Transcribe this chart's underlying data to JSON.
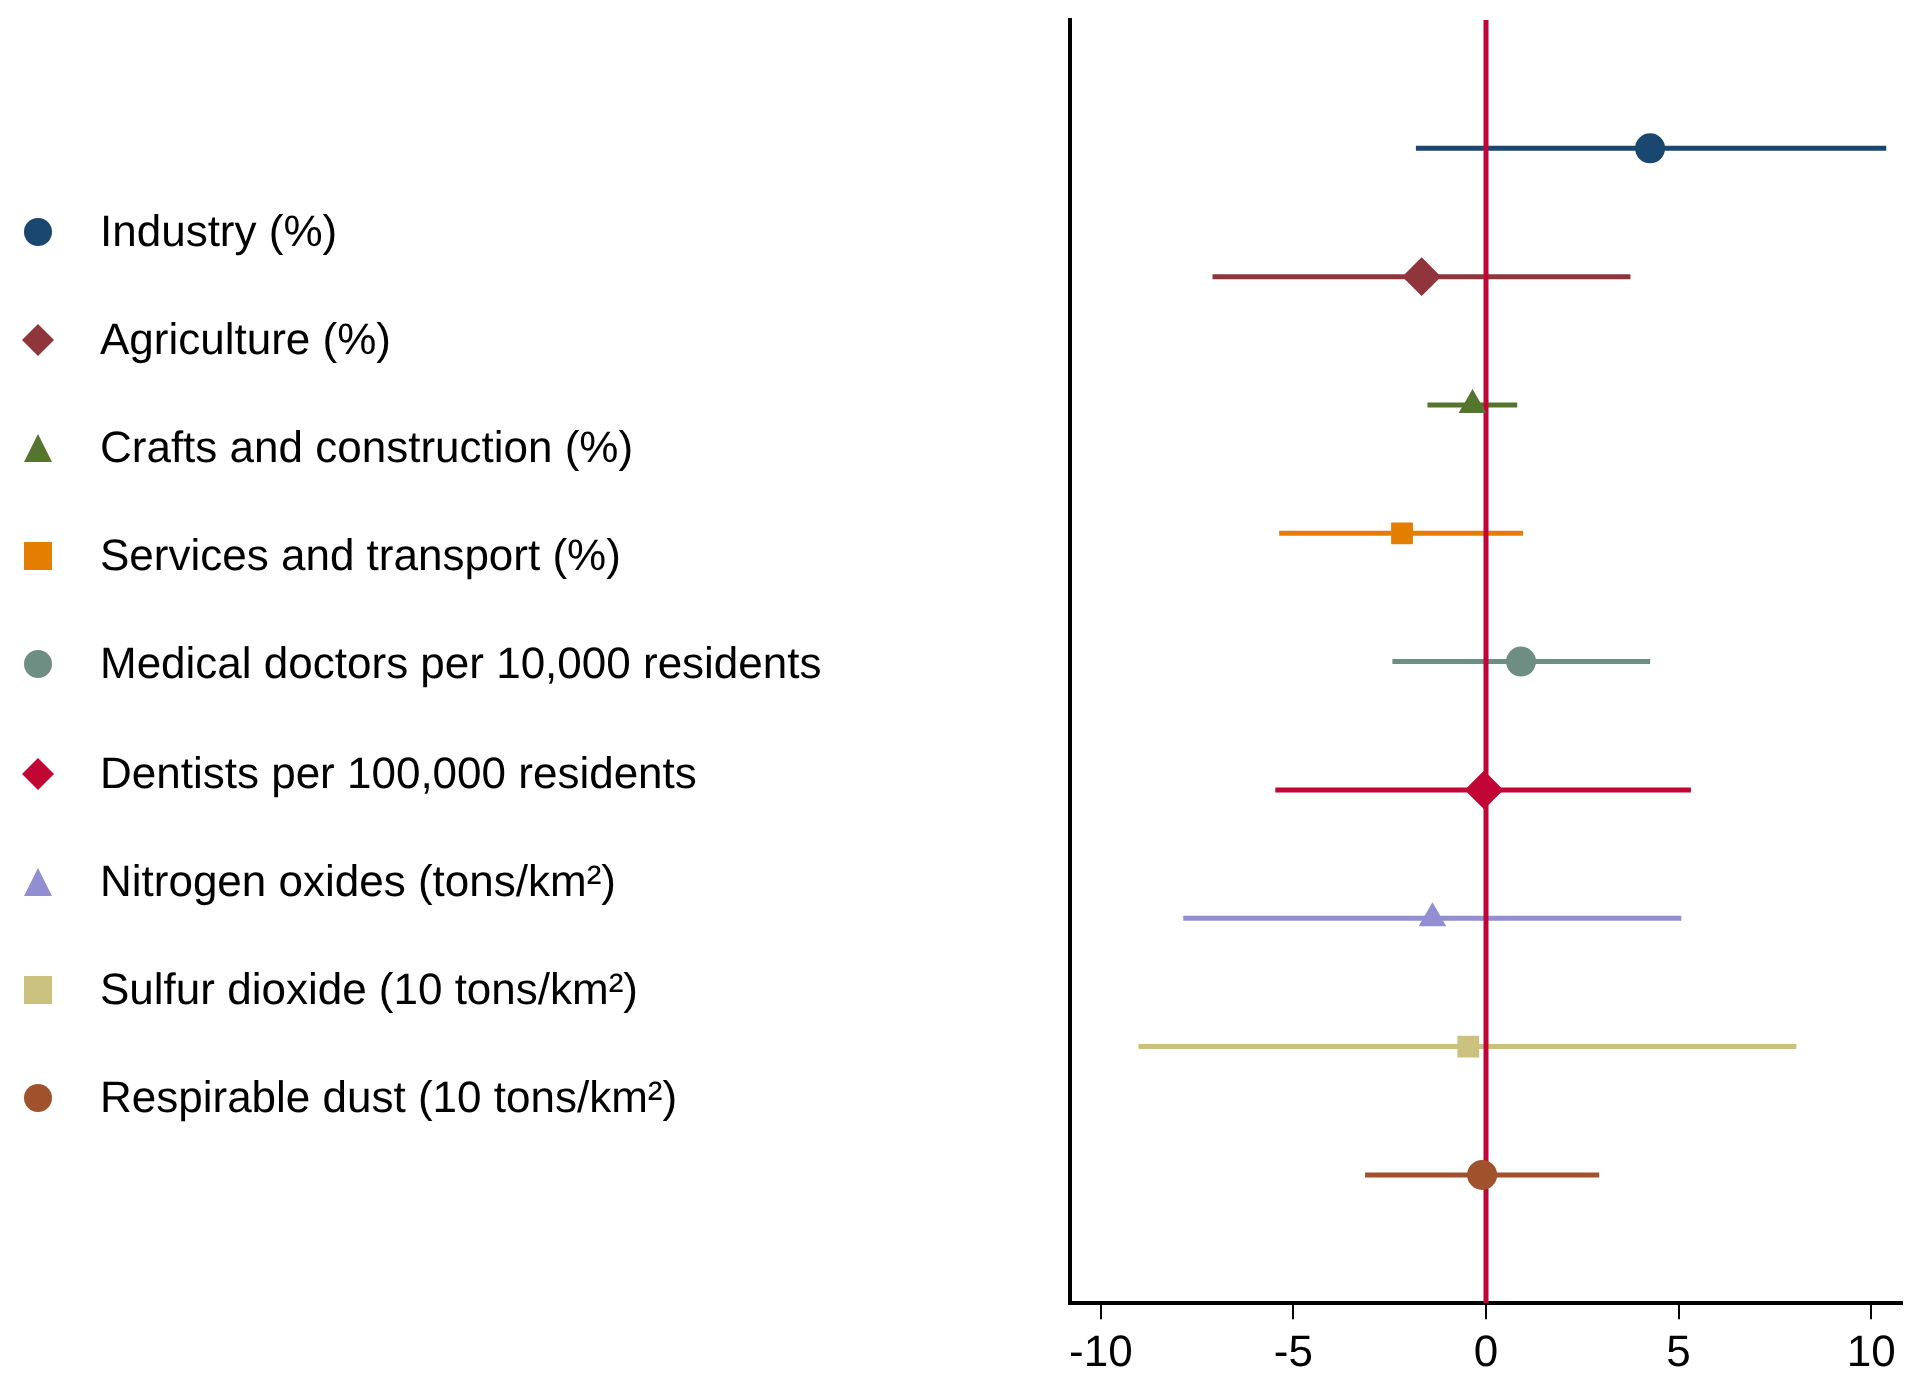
{
  "chart_data": {
    "type": "scatter",
    "orientation": "horizontal",
    "categories": [
      null,
      null,
      null,
      null,
      null,
      null,
      null,
      null,
      null
    ],
    "xlim": [
      -10.8,
      10.8
    ],
    "xticks": [
      -10,
      -5,
      0,
      5,
      10
    ],
    "grid": false,
    "legend": "left",
    "tick_labels": "x",
    "ref_lines": [
      {
        "axis": "x",
        "value": 0,
        "color": "#c10534"
      }
    ],
    "series": [
      {
        "name": "Industry (%)",
        "color": "#1a476f",
        "marker": "circle",
        "values": [
          4.26,
          null,
          null,
          null,
          null,
          null,
          null,
          null,
          null
        ],
        "errors": [
          [
            -1.82,
            10.39
          ],
          null,
          null,
          null,
          null,
          null,
          null,
          null,
          null
        ]
      },
      {
        "name": "Agriculture (%)",
        "color": "#90353b",
        "marker": "diamond",
        "values": [
          null,
          -1.67,
          null,
          null,
          null,
          null,
          null,
          null,
          null
        ],
        "errors": [
          null,
          [
            -7.1,
            3.75
          ],
          null,
          null,
          null,
          null,
          null,
          null,
          null
        ]
      },
      {
        "name": "Crafts and construction (%)",
        "color": "#55752f",
        "marker": "triangle",
        "values": [
          null,
          null,
          -0.35,
          null,
          null,
          null,
          null,
          null,
          null
        ],
        "errors": [
          null,
          null,
          [
            -1.52,
            0.81
          ],
          null,
          null,
          null,
          null,
          null,
          null
        ]
      },
      {
        "name": "Services and transport (%)",
        "color": "#e37e00",
        "marker": "square",
        "values": [
          null,
          null,
          null,
          -2.18,
          null,
          null,
          null,
          null,
          null
        ],
        "errors": [
          null,
          null,
          null,
          [
            -5.37,
            0.96
          ],
          null,
          null,
          null,
          null,
          null
        ]
      },
      {
        "name": "Medical doctors per 10,000 residents",
        "color": "#6e8e84",
        "marker": "circle",
        "values": [
          null,
          null,
          null,
          null,
          0.91,
          null,
          null,
          null,
          null
        ],
        "errors": [
          null,
          null,
          null,
          null,
          [
            -2.43,
            4.26
          ],
          null,
          null,
          null,
          null
        ]
      },
      {
        "name": "Dentists per 100,000 residents",
        "color": "#c10534",
        "marker": "diamond",
        "values": [
          null,
          null,
          null,
          null,
          null,
          -0.05,
          null,
          null,
          null
        ],
        "errors": [
          null,
          null,
          null,
          null,
          null,
          [
            -5.47,
            5.32
          ],
          null,
          null,
          null
        ]
      },
      {
        "name": "Nitrogen oxides (tons/km²)",
        "color": "#938dd2",
        "marker": "triangle",
        "values": [
          null,
          null,
          null,
          null,
          null,
          null,
          -1.39,
          null,
          null
        ],
        "errors": [
          null,
          null,
          null,
          null,
          null,
          null,
          [
            -7.86,
            5.07
          ],
          null,
          null
        ]
      },
      {
        "name": "Sulfur dioxide (10 tons/km²)",
        "color": "#cac27e",
        "marker": "square",
        "values": [
          null,
          null,
          null,
          null,
          null,
          null,
          null,
          -0.46,
          null
        ],
        "errors": [
          null,
          null,
          null,
          null,
          null,
          null,
          null,
          [
            -9.02,
            8.06
          ],
          null
        ]
      },
      {
        "name": "Respirable dust (10 tons/km²)",
        "color": "#a0522d",
        "marker": "circle",
        "values": [
          null,
          null,
          null,
          null,
          null,
          null,
          null,
          null,
          -0.1
        ],
        "errors": [
          null,
          null,
          null,
          null,
          null,
          null,
          null,
          null,
          [
            -3.14,
            2.94
          ]
        ]
      }
    ]
  }
}
